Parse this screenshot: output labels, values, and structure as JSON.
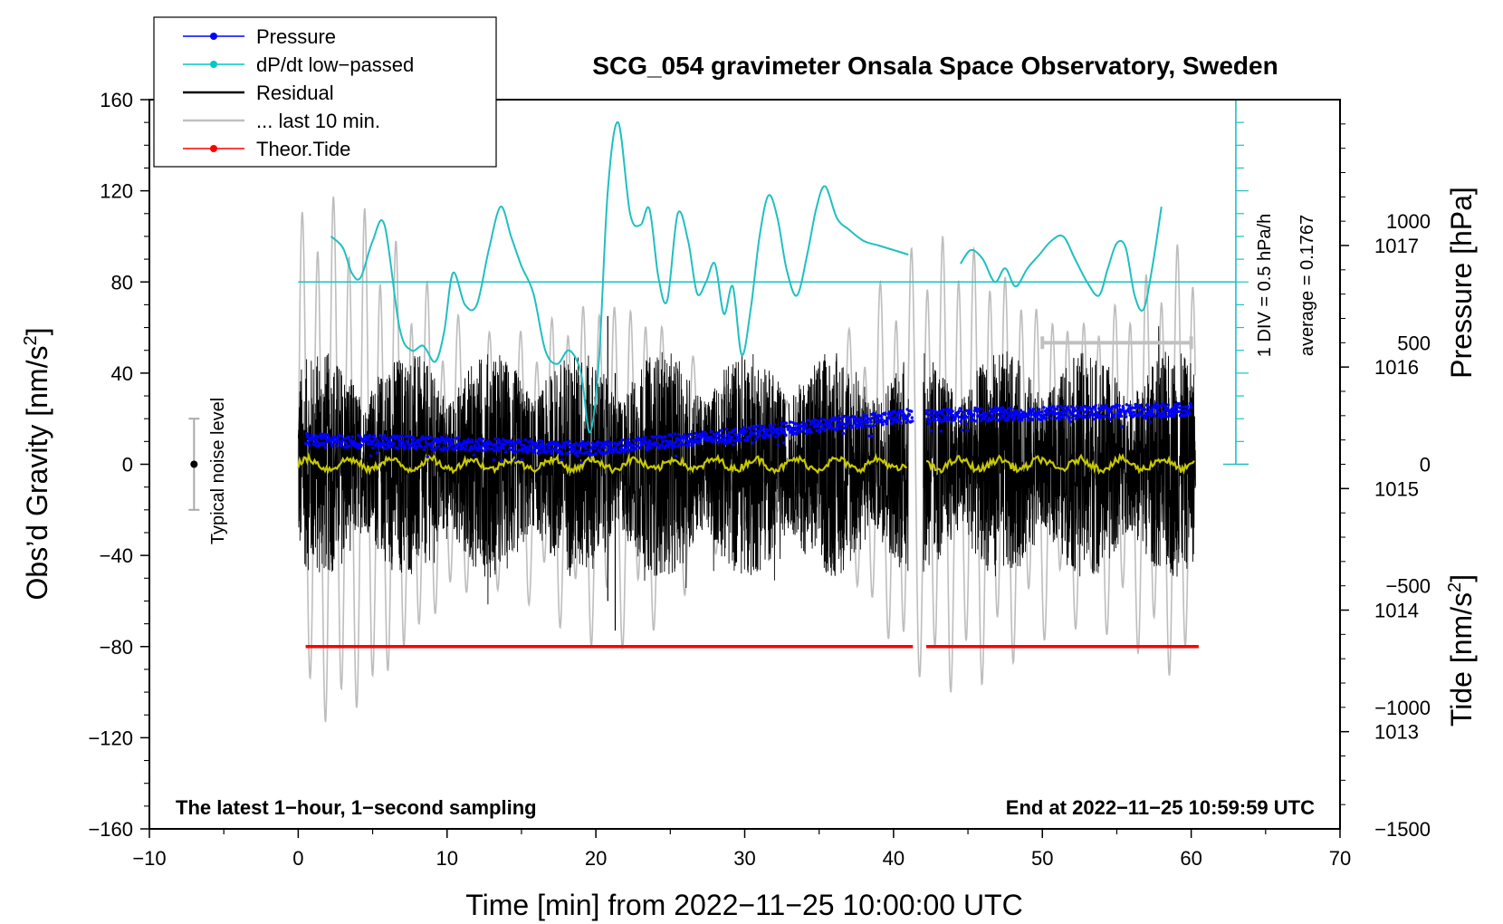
{
  "chart_data": {
    "type": "line",
    "title": "SCG_054 gravimeter Onsala Space Observatory, Sweden",
    "xlabel": "Time [min] from 2022−11−25 10:00:00 UTC",
    "ylabel": "Obs’d Gravity [nm/s²]",
    "ylabel_base": "Obs’d Gravity [nm/s",
    "ylabel_sup": "2",
    "ylabel_close": "]",
    "right_top_label": "Pressure [hPa]",
    "right_bottom_label_base": "Tide [nm/s",
    "right_bottom_label_sup": "2",
    "right_bottom_label_close": "]",
    "xlim": [
      -10,
      70
    ],
    "ylim": [
      -160,
      160
    ],
    "pressure_lim": [
      1012.2,
      1018.2
    ],
    "tide_lim": [
      -1500,
      1500
    ],
    "x_ticks": [
      "−10",
      "0",
      "10",
      "20",
      "30",
      "40",
      "50",
      "60",
      "70"
    ],
    "y_ticks": [
      "−160",
      "−120",
      "−80",
      "−40",
      "0",
      "40",
      "80",
      "120",
      "160"
    ],
    "pressure_ticks": [
      "1013",
      "1014",
      "1015",
      "1016",
      "1017"
    ],
    "tide_ticks": [
      "−1500",
      "−1000",
      "−500",
      "0",
      "500",
      "1000"
    ],
    "legend": [
      {
        "label": "Pressure",
        "color": "#0000ff",
        "marker": true
      },
      {
        "label": "dP/dt low−passed",
        "color": "#00c8c8",
        "marker": true
      },
      {
        "label": "Residual",
        "color": "#000000",
        "marker": false
      },
      {
        "label": "... last 10 min.",
        "color": "#c0c0c0",
        "marker": false
      },
      {
        "label": "Theor.Tide",
        "color": "#ff0000",
        "marker": true
      }
    ],
    "annotations": {
      "noise": "Typical noise level",
      "scale": "1 DIV = 0.5 hPa/h",
      "average": "average = 0.1767",
      "bottom_left": "The latest 1−hour, 1−second sampling",
      "bottom_right": "End at 2022−11−25 10:59:59 UTC"
    },
    "series": [
      {
        "name": "Pressure",
        "axis": "pressure",
        "gap": [
          41.3,
          42.2
        ],
        "points": [
          [
            0.5,
            1015.4
          ],
          [
            10,
            1015.37
          ],
          [
            20,
            1015.33
          ],
          [
            30,
            1015.45
          ],
          [
            41,
            1015.6
          ],
          [
            42.5,
            1015.6
          ],
          [
            50,
            1015.62
          ],
          [
            60,
            1015.65
          ]
        ]
      },
      {
        "name": "dP/dt low−passed",
        "axis": "gravity_div",
        "x": [
          2.2,
          3.0,
          3.6,
          4.2,
          5.0,
          5.8,
          6.8,
          7.6,
          8.4,
          9.2,
          9.8,
          10.4,
          11.2,
          12.0,
          12.8,
          13.6,
          14.3,
          15.0,
          15.8,
          16.6,
          17.4,
          18.2,
          19.0,
          19.6,
          20.2,
          20.8,
          21.5,
          22.3,
          23.0,
          23.6,
          24.2,
          24.8,
          25.5,
          26.2,
          26.8,
          27.4,
          28.0,
          28.6,
          29.2,
          29.8,
          30.4,
          31.0,
          31.6,
          32.2,
          32.8,
          33.5,
          34.2,
          34.8,
          35.4,
          36.2,
          37.0,
          38.0,
          39.0,
          40.0,
          41.0
        ],
        "y": [
          100,
          95,
          84,
          82,
          98,
          105,
          60,
          50,
          52,
          45,
          58,
          84,
          70,
          70,
          94,
          113,
          100,
          87,
          75,
          50,
          44,
          50,
          40,
          14,
          45,
          120,
          150,
          110,
          105,
          112,
          82,
          72,
          110,
          98,
          75,
          80,
          88,
          66,
          78,
          48,
          68,
          100,
          118,
          108,
          86,
          74,
          92,
          112,
          122,
          108,
          103,
          98,
          96,
          94,
          92
        ]
      },
      {
        "name": "dP/dt low−passed",
        "axis": "gravity_div",
        "x": [
          44.5,
          45.2,
          46.0,
          46.8,
          47.5,
          48.2,
          49.0,
          49.8,
          50.6,
          51.4,
          52.2,
          53.0,
          53.8,
          54.4,
          55.0,
          55.6,
          56.2,
          56.8,
          57.4,
          58.0
        ],
        "y": [
          88,
          94,
          90,
          80,
          86,
          78,
          86,
          92,
          98,
          100,
          90,
          80,
          74,
          86,
          97,
          95,
          74,
          68,
          87,
          113
        ]
      },
      {
        "name": "Residual",
        "axis": "gravity",
        "gap": [
          41.0,
          42.0
        ],
        "x_range": [
          0,
          60.3
        ],
        "typical_range": [
          -50,
          50
        ],
        "extremes": [
          -73,
          69
        ]
      },
      {
        "name": "Residual low−passed",
        "axis": "gravity",
        "values_near": 0
      },
      {
        "name": "... last 10 min.",
        "axis": "tide",
        "x_range": [
          0,
          60.3
        ],
        "amplitude": 1000
      },
      {
        "name": "Theor.Tide",
        "axis": "gravity",
        "gap": [
          41.3,
          42.2
        ],
        "points": [
          [
            0.5,
            -80
          ],
          [
            41.3,
            -80
          ],
          [
            42.2,
            -80
          ],
          [
            60.5,
            -80
          ]
        ]
      }
    ],
    "noise_bar": {
      "x": -7,
      "center": 0,
      "low": -20,
      "high": 20
    },
    "last_10_min_bar": {
      "x_start": 50,
      "x_end": 60
    },
    "reference_line_y": 80,
    "pressure_scale_axis_x": 63
  }
}
